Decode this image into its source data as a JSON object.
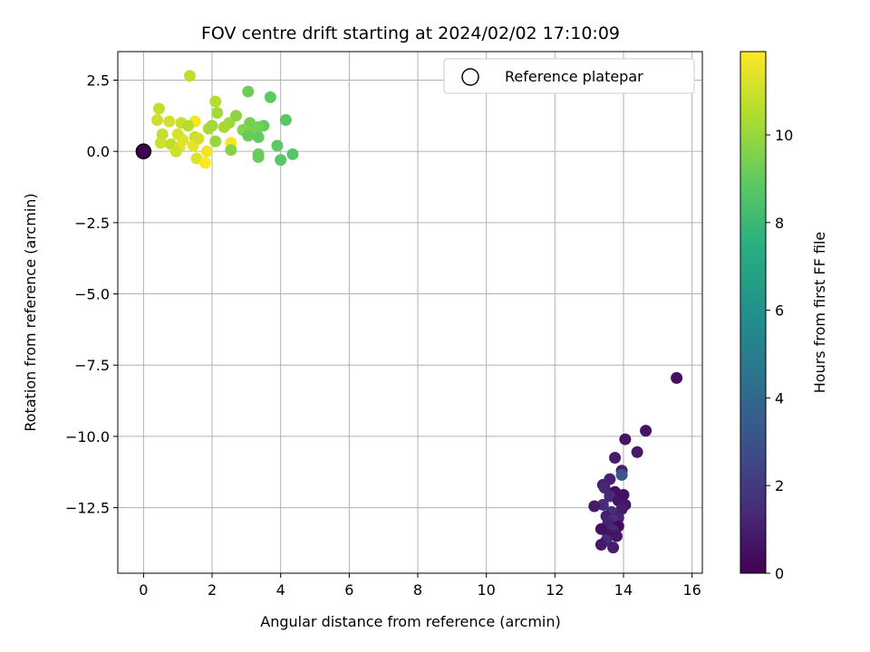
{
  "chart_data": {
    "type": "scatter",
    "title": "FOV centre drift starting at 2024/02/02 17:10:09",
    "xlabel": "Angular distance from reference (arcmin)",
    "ylabel": "Rotation from reference (arcmin)",
    "xlim": [
      -0.75,
      16.3
    ],
    "ylim": [
      -14.8,
      3.5
    ],
    "xticks": [
      0,
      2,
      4,
      6,
      8,
      10,
      12,
      14,
      16
    ],
    "yticks": [
      2.5,
      0.0,
      -2.5,
      -5.0,
      -7.5,
      -10.0,
      -12.5
    ],
    "xtick_labels": [
      "0",
      "2",
      "4",
      "6",
      "8",
      "10",
      "12",
      "14",
      "16"
    ],
    "ytick_labels": [
      "2.5",
      "0.0",
      "−2.5",
      "−5.0",
      "−7.5",
      "−10.0",
      "−12.5"
    ],
    "grid": true,
    "legend": {
      "placement": "top-right",
      "entries": [
        "Reference platepar"
      ]
    },
    "colorbar": {
      "label": "Hours from first FF file",
      "colormap": "viridis",
      "range": [
        0,
        11.9
      ],
      "ticks": [
        0,
        2,
        4,
        6,
        8,
        10
      ],
      "tick_labels": [
        "0",
        "2",
        "4",
        "6",
        "8",
        "10"
      ]
    },
    "reference_point": {
      "x": 0,
      "y": 0,
      "c": 0.0
    },
    "points": [
      {
        "x": 15.55,
        "y": -7.95,
        "c": 0.5
      },
      {
        "x": 14.65,
        "y": -9.8,
        "c": 0.6
      },
      {
        "x": 14.05,
        "y": -10.1,
        "c": 0.7
      },
      {
        "x": 14.4,
        "y": -10.55,
        "c": 0.8
      },
      {
        "x": 13.75,
        "y": -10.75,
        "c": 0.9
      },
      {
        "x": 13.95,
        "y": -11.2,
        "c": 1.0
      },
      {
        "x": 13.95,
        "y": -11.35,
        "c": 3.2
      },
      {
        "x": 13.6,
        "y": -11.5,
        "c": 1.1
      },
      {
        "x": 13.4,
        "y": -11.7,
        "c": 1.2
      },
      {
        "x": 13.45,
        "y": -11.8,
        "c": 1.3
      },
      {
        "x": 13.75,
        "y": -11.95,
        "c": 0.4
      },
      {
        "x": 14.0,
        "y": -12.05,
        "c": 0.5
      },
      {
        "x": 13.6,
        "y": -12.1,
        "c": 1.4
      },
      {
        "x": 13.85,
        "y": -12.25,
        "c": 0.6
      },
      {
        "x": 13.4,
        "y": -12.4,
        "c": 1.5
      },
      {
        "x": 14.05,
        "y": -12.4,
        "c": 0.7
      },
      {
        "x": 13.15,
        "y": -12.45,
        "c": 0.8
      },
      {
        "x": 13.95,
        "y": -12.55,
        "c": 0.9
      },
      {
        "x": 13.65,
        "y": -12.65,
        "c": 1.6
      },
      {
        "x": 13.5,
        "y": -12.8,
        "c": 1.0
      },
      {
        "x": 13.85,
        "y": -12.85,
        "c": 1.1
      },
      {
        "x": 13.7,
        "y": -12.95,
        "c": 1.7
      },
      {
        "x": 13.55,
        "y": -13.05,
        "c": 1.2
      },
      {
        "x": 13.85,
        "y": -13.15,
        "c": 0.3
      },
      {
        "x": 13.35,
        "y": -13.25,
        "c": 0.5
      },
      {
        "x": 13.7,
        "y": -13.3,
        "c": 1.3
      },
      {
        "x": 13.55,
        "y": -13.45,
        "c": 0.6
      },
      {
        "x": 13.8,
        "y": -13.5,
        "c": 0.7
      },
      {
        "x": 13.5,
        "y": -13.65,
        "c": 1.4
      },
      {
        "x": 13.35,
        "y": -13.8,
        "c": 0.8
      },
      {
        "x": 13.7,
        "y": -13.9,
        "c": 0.9
      },
      {
        "x": 1.35,
        "y": 2.65,
        "c": 10.7
      },
      {
        "x": 3.05,
        "y": 2.1,
        "c": 9.2
      },
      {
        "x": 3.7,
        "y": 1.9,
        "c": 8.9
      },
      {
        "x": 2.1,
        "y": 1.75,
        "c": 10.5
      },
      {
        "x": 0.45,
        "y": 1.5,
        "c": 10.8
      },
      {
        "x": 2.15,
        "y": 1.35,
        "c": 10.2
      },
      {
        "x": 2.7,
        "y": 1.25,
        "c": 9.8
      },
      {
        "x": 4.15,
        "y": 1.1,
        "c": 8.8
      },
      {
        "x": 0.4,
        "y": 1.1,
        "c": 11.0
      },
      {
        "x": 0.75,
        "y": 1.05,
        "c": 11.1
      },
      {
        "x": 1.5,
        "y": 1.05,
        "c": 11.7
      },
      {
        "x": 1.1,
        "y": 1.0,
        "c": 10.9
      },
      {
        "x": 3.1,
        "y": 1.0,
        "c": 9.4
      },
      {
        "x": 2.5,
        "y": 1.0,
        "c": 10.1
      },
      {
        "x": 1.3,
        "y": 0.9,
        "c": 10.6
      },
      {
        "x": 3.5,
        "y": 0.9,
        "c": 9.0
      },
      {
        "x": 3.35,
        "y": 0.85,
        "c": 9.3
      },
      {
        "x": 2.35,
        "y": 0.85,
        "c": 10.3
      },
      {
        "x": 1.9,
        "y": 0.8,
        "c": 10.4
      },
      {
        "x": 2.9,
        "y": 0.75,
        "c": 9.6
      },
      {
        "x": 3.2,
        "y": 0.7,
        "c": 9.5
      },
      {
        "x": 0.55,
        "y": 0.6,
        "c": 10.8
      },
      {
        "x": 1.0,
        "y": 0.6,
        "c": 11.2
      },
      {
        "x": 3.05,
        "y": 0.55,
        "c": 9.1
      },
      {
        "x": 1.5,
        "y": 0.5,
        "c": 10.9
      },
      {
        "x": 3.35,
        "y": 0.5,
        "c": 9.0
      },
      {
        "x": 1.15,
        "y": 0.4,
        "c": 11.3
      },
      {
        "x": 2.1,
        "y": 0.35,
        "c": 10.0
      },
      {
        "x": 2.55,
        "y": 0.3,
        "c": 11.8
      },
      {
        "x": 0.5,
        "y": 0.3,
        "c": 11.0
      },
      {
        "x": 0.8,
        "y": 0.25,
        "c": 10.7
      },
      {
        "x": 1.45,
        "y": 0.2,
        "c": 11.5
      },
      {
        "x": 3.9,
        "y": 0.2,
        "c": 8.9
      },
      {
        "x": 1.05,
        "y": 0.15,
        "c": 11.4
      },
      {
        "x": 0.95,
        "y": 0.0,
        "c": 11.0
      },
      {
        "x": 2.55,
        "y": 0.05,
        "c": 9.7
      },
      {
        "x": 1.85,
        "y": 0.0,
        "c": 11.6
      },
      {
        "x": 3.35,
        "y": -0.1,
        "c": 9.2
      },
      {
        "x": 4.35,
        "y": -0.1,
        "c": 8.7
      },
      {
        "x": 3.35,
        "y": -0.2,
        "c": 9.1
      },
      {
        "x": 1.55,
        "y": -0.25,
        "c": 11.3
      },
      {
        "x": 4.0,
        "y": -0.3,
        "c": 8.8
      },
      {
        "x": 1.8,
        "y": -0.4,
        "c": 11.9
      },
      {
        "x": 1.6,
        "y": 0.45,
        "c": 11.1
      },
      {
        "x": 2.0,
        "y": 0.9,
        "c": 10.2
      }
    ]
  }
}
